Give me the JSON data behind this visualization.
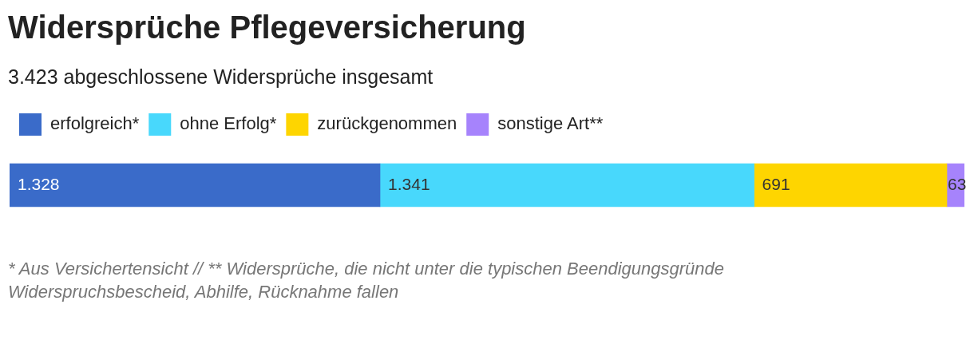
{
  "chart_data": {
    "type": "bar",
    "orientation": "horizontal",
    "stacked": true,
    "title": "Widersprüche Pflegeversicherung",
    "subtitle": "3.423 abgeschlossene Widersprüche insgesamt",
    "categories": [
      null
    ],
    "series": [
      {
        "name": "erfolgreich*",
        "color": "#3a6bc9",
        "values": [
          1328
        ],
        "value_labels": [
          "1.328"
        ]
      },
      {
        "name": "ohne Erfolg*",
        "color": "#48d8fc",
        "values": [
          1341
        ],
        "value_labels": [
          "1.341"
        ]
      },
      {
        "name": "zurückgenommen",
        "color": "#fed500",
        "values": [
          691
        ],
        "value_labels": [
          "691"
        ]
      },
      {
        "name": "sonstige Art**",
        "color": "#a683fc",
        "values": [
          63
        ],
        "value_labels": [
          "63"
        ]
      }
    ],
    "legend": "top left",
    "annotations": [
      "* Aus Versichertensicht // ** Widersprüche, die nicht unter die typischen Beendigungsgründe Widerspruchsbescheid, Abhilfe, Rücknahme fallen"
    ]
  }
}
